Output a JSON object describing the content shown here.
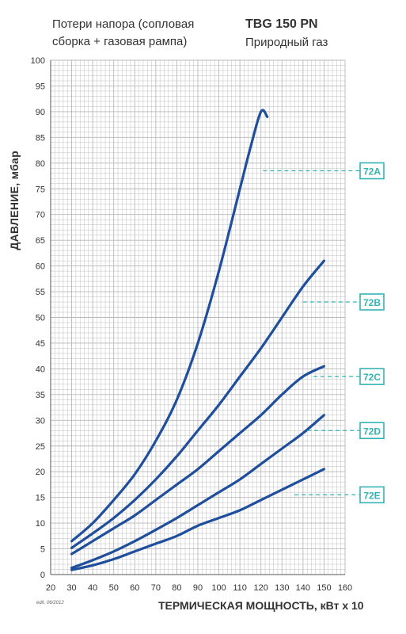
{
  "header": {
    "left_line1": "Потери напора (сопловая",
    "left_line2": "сборка + газовая рампа)",
    "model": "TBG 150 PN",
    "fuel": "Природный газ"
  },
  "footer_code": "edit. 06/2012",
  "chart_data": {
    "type": "line",
    "xlabel": "ТЕРМИЧЕСКАЯ МОЩНОСТЬ, кВт x 10",
    "ylabel": "ДАВЛЕНИЕ, мбар",
    "xlim": [
      20,
      160
    ],
    "ylim": [
      0,
      100
    ],
    "x_ticks": [
      "20",
      "30",
      "40",
      "50",
      "60",
      "70",
      "80",
      "90",
      "100",
      "110",
      "120",
      "130",
      "140",
      "150",
      "160"
    ],
    "y_ticks": [
      "0",
      "5",
      "10",
      "15",
      "20",
      "25",
      "30",
      "35",
      "40",
      "45",
      "50",
      "55",
      "60",
      "65",
      "70",
      "75",
      "80",
      "85",
      "90",
      "95",
      "100"
    ],
    "grid": true,
    "colors": {
      "curve": "#1f4e9c",
      "tag": "#35b3b3",
      "grid": "#b8b8b8"
    },
    "series": [
      {
        "name": "72A",
        "x": [
          30,
          40,
          50,
          60,
          70,
          80,
          90,
          100,
          110,
          115,
          120,
          123
        ],
        "y": [
          6.5,
          10,
          14.5,
          19.5,
          26,
          34,
          45,
          59,
          75,
          83,
          90,
          89
        ]
      },
      {
        "name": "72B",
        "x": [
          30,
          40,
          50,
          60,
          70,
          80,
          90,
          100,
          110,
          120,
          130,
          140,
          150
        ],
        "y": [
          5.2,
          8,
          11,
          14.5,
          18.5,
          23,
          28,
          33,
          38.5,
          44,
          50,
          56,
          61
        ]
      },
      {
        "name": "72C",
        "x": [
          30,
          40,
          50,
          60,
          70,
          80,
          90,
          100,
          110,
          120,
          130,
          140,
          150
        ],
        "y": [
          4,
          6.5,
          9,
          11.5,
          14.5,
          17.5,
          20.5,
          24,
          27.5,
          31,
          35,
          38.5,
          40.5
        ]
      },
      {
        "name": "72D",
        "x": [
          30,
          40,
          50,
          60,
          70,
          80,
          90,
          100,
          110,
          120,
          130,
          140,
          150
        ],
        "y": [
          1.3,
          2.8,
          4.5,
          6.5,
          8.7,
          11,
          13.5,
          16,
          18.5,
          21.5,
          24.5,
          27.5,
          31
        ]
      },
      {
        "name": "72E",
        "x": [
          30,
          40,
          50,
          60,
          70,
          80,
          90,
          100,
          110,
          120,
          130,
          140,
          150
        ],
        "y": [
          0.9,
          1.8,
          3,
          4.5,
          6,
          7.5,
          9.5,
          11,
          12.5,
          14.5,
          16.5,
          18.5,
          20.5
        ]
      }
    ],
    "tags": [
      {
        "label": "72A",
        "at_y": 78.5
      },
      {
        "label": "72B",
        "at_y": 53
      },
      {
        "label": "72C",
        "at_y": 38.5
      },
      {
        "label": "72D",
        "at_y": 28
      },
      {
        "label": "72E",
        "at_y": 15.5
      }
    ]
  }
}
